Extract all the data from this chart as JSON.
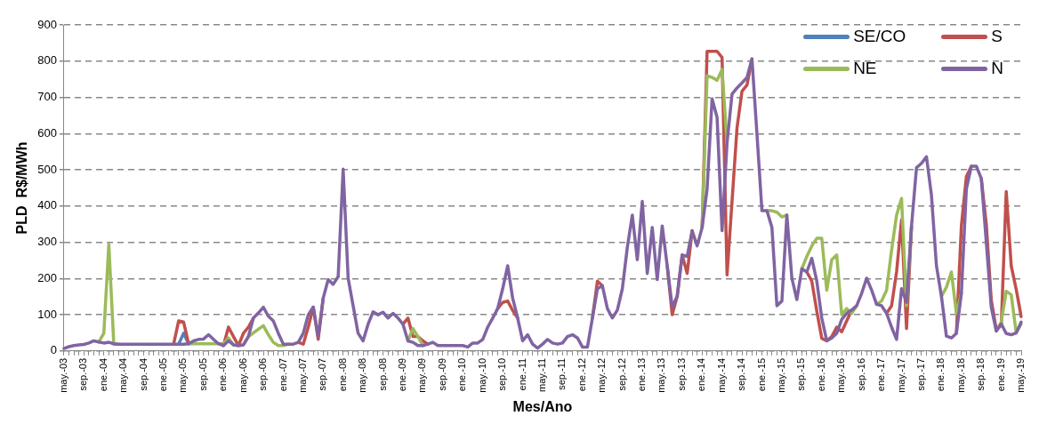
{
  "chart_data": {
    "type": "line",
    "xlabel": "Mes/Ano",
    "ylabel": "PLD  R$/MWh",
    "categories": [
      "may.-03",
      null,
      null,
      null,
      "sep.-03",
      null,
      null,
      null,
      "ene.-04",
      null,
      null,
      null,
      "may.-04",
      null,
      null,
      null,
      "sep.-04",
      null,
      null,
      null,
      "ene.-05",
      null,
      null,
      null,
      "may.-05",
      null,
      null,
      null,
      "sep.-05",
      null,
      null,
      null,
      "ene.-06",
      null,
      null,
      null,
      "may.-06",
      null,
      null,
      null,
      "sep.-06",
      null,
      null,
      null,
      "ene.-07",
      null,
      null,
      null,
      "may.-07",
      null,
      null,
      null,
      "sep.-07",
      null,
      null,
      null,
      "ene.-08",
      null,
      null,
      null,
      "may.-08",
      null,
      null,
      null,
      "sep.-08",
      null,
      null,
      null,
      "ene.-09",
      null,
      null,
      null,
      "may.-09",
      null,
      null,
      null,
      "sep.-09",
      null,
      null,
      null,
      "ene.-10",
      null,
      null,
      null,
      "may.-10",
      null,
      null,
      null,
      "sep.-10",
      null,
      null,
      null,
      "ene.-11",
      null,
      null,
      null,
      "may.-11",
      null,
      null,
      null,
      "sep.-11",
      null,
      null,
      null,
      "ene.-12",
      null,
      null,
      null,
      "may.-12",
      null,
      null,
      null,
      "sep.-12",
      null,
      null,
      null,
      "ene.-13",
      null,
      null,
      null,
      "may.-13",
      null,
      null,
      null,
      "sep.-13",
      null,
      null,
      null,
      "ene.-14",
      null,
      null,
      null,
      "may.-14",
      null,
      null,
      null,
      "sep.-14",
      null,
      null,
      null,
      "ene.-15",
      null,
      null,
      null,
      "may.-15",
      null,
      null,
      null,
      "sep.-15",
      null,
      null,
      null,
      "ene.-16",
      null,
      null,
      null,
      "may.-16",
      null,
      null,
      null,
      "sep.-16",
      null,
      null,
      null,
      "ene.-17",
      null,
      null,
      null,
      "may.-17",
      null,
      null,
      null,
      "sep.-17",
      null,
      null,
      null,
      "ene.-18",
      null,
      null,
      null,
      "may.-18",
      null,
      null,
      null,
      "sep.-18",
      null,
      null,
      null,
      "ene.-19",
      null,
      null,
      null,
      "may.-19"
    ],
    "series": [
      {
        "name": "SE/CO",
        "color": "#4f81bd",
        "values": [
          null,
          null,
          null,
          null,
          null,
          null,
          null,
          null,
          null,
          null,
          null,
          null,
          null,
          null,
          null,
          null,
          null,
          null,
          null,
          null,
          null,
          null,
          null,
          19,
          49,
          20,
          null,
          null,
          null,
          null,
          null,
          null,
          null,
          null,
          null,
          null,
          null,
          null,
          null,
          null,
          null,
          null,
          null,
          null,
          null,
          null,
          null,
          null,
          null,
          null,
          null,
          null,
          null,
          null,
          null,
          null,
          null,
          null,
          null,
          null,
          null,
          null,
          null,
          null,
          null,
          null,
          null,
          null,
          null,
          null,
          null,
          null,
          null,
          null,
          null,
          null,
          null,
          null,
          null,
          null,
          null,
          null,
          null,
          null,
          null,
          null,
          null,
          null,
          null,
          null,
          null,
          null,
          null,
          null,
          null,
          null,
          null,
          null,
          null,
          null,
          null,
          null,
          null,
          null,
          null,
          null,
          null,
          null,
          null,
          null,
          null,
          null,
          null,
          null,
          null,
          null,
          null,
          null,
          null,
          null,
          null,
          null,
          null,
          null,
          null,
          null,
          null,
          null,
          null,
          null,
          null,
          null,
          null,
          null,
          null,
          null,
          null,
          null,
          null,
          null,
          null,
          null,
          null,
          null,
          null,
          null,
          null,
          null,
          null,
          null,
          null,
          null,
          null,
          null,
          null,
          null,
          null,
          null,
          null,
          null,
          null,
          null,
          null,
          null,
          null,
          null,
          null,
          null,
          null,
          null,
          null,
          null,
          null,
          null,
          null,
          null,
          null,
          null,
          null,
          null,
          null,
          null,
          null,
          null,
          null,
          null,
          null,
          null,
          null,
          null,
          null,
          null,
          null
        ]
      },
      {
        "name": "S",
        "color": "#c0504d",
        "values": [
          null,
          null,
          null,
          null,
          null,
          null,
          null,
          null,
          null,
          null,
          null,
          null,
          null,
          null,
          null,
          null,
          null,
          null,
          null,
          null,
          null,
          null,
          19,
          83,
          80,
          20,
          null,
          null,
          null,
          null,
          null,
          null,
          15,
          66,
          40,
          15,
          49,
          66,
          91,
          null,
          null,
          null,
          null,
          null,
          null,
          null,
          null,
          24,
          19,
          66,
          121,
          32,
          146,
          null,
          null,
          null,
          null,
          null,
          null,
          null,
          null,
          null,
          null,
          null,
          null,
          null,
          null,
          null,
          74,
          91,
          40,
          40,
          28,
          19,
          null,
          null,
          null,
          null,
          null,
          null,
          null,
          null,
          null,
          null,
          null,
          null,
          null,
          117,
          134,
          138,
          112,
          91,
          null,
          null,
          null,
          null,
          null,
          null,
          null,
          null,
          null,
          null,
          null,
          null,
          null,
          null,
          91,
          193,
          180,
          null,
          null,
          null,
          null,
          null,
          null,
          null,
          null,
          null,
          null,
          null,
          null,
          235,
          100,
          151,
          265,
          214,
          332,
          null,
          341,
          827,
          827,
          827,
          810,
          210,
          413,
          616,
          717,
          734,
          806,
          null,
          null,
          null,
          null,
          null,
          null,
          null,
          null,
          null,
          null,
          218,
          193,
          110,
          35,
          28,
          40,
          66,
          53,
          83,
          113,
          null,
          null,
          null,
          null,
          null,
          null,
          104,
          125,
          218,
          362,
          62,
          345,
          null,
          null,
          null,
          null,
          null,
          null,
          null,
          null,
          49,
          345,
          481,
          510,
          null,
          476,
          350,
          140,
          60,
          70,
          440,
          235,
          170,
          95
        ]
      },
      {
        "name": "NE",
        "color": "#9bbb59",
        "values": [
          null,
          null,
          null,
          null,
          null,
          null,
          null,
          25,
          49,
          294,
          19,
          19,
          null,
          null,
          null,
          null,
          null,
          null,
          null,
          null,
          null,
          null,
          null,
          null,
          null,
          20,
          20,
          20,
          20,
          20,
          20,
          20,
          20,
          36,
          17,
          15,
          17,
          40,
          50,
          60,
          70,
          45,
          24,
          15,
          15,
          19,
          null,
          null,
          null,
          null,
          null,
          null,
          null,
          null,
          null,
          null,
          null,
          null,
          null,
          null,
          null,
          null,
          null,
          null,
          null,
          null,
          null,
          null,
          null,
          28,
          62,
          40,
          15,
          null,
          null,
          null,
          null,
          null,
          null,
          null,
          null,
          null,
          null,
          null,
          null,
          null,
          null,
          null,
          null,
          null,
          null,
          null,
          null,
          null,
          null,
          null,
          null,
          null,
          null,
          null,
          null,
          null,
          null,
          null,
          null,
          null,
          null,
          null,
          null,
          null,
          null,
          null,
          null,
          null,
          null,
          null,
          null,
          null,
          null,
          null,
          null,
          null,
          null,
          null,
          null,
          null,
          null,
          null,
          341,
          760,
          755,
          747,
          777,
          574,
          null,
          null,
          null,
          null,
          null,
          null,
          null,
          387,
          387,
          383,
          370,
          375,
          null,
          null,
          227,
          261,
          290,
          311,
          311,
          168,
          252,
          265,
          100,
          117,
          104,
          125,
          null,
          null,
          null,
          129,
          138,
          168,
          278,
          375,
          421,
          125,
          345,
          null,
          null,
          null,
          null,
          null,
          151,
          176,
          218,
          104,
          159,
          null,
          null,
          null,
          null,
          null,
          null,
          55,
          80,
          165,
          155,
          50,
          75
        ]
      },
      {
        "name": "N",
        "color": "#8064a2",
        "values": [
          7,
          12,
          15,
          17,
          18,
          22,
          28,
          25,
          22,
          24,
          20,
          19,
          19,
          19,
          19,
          19,
          19,
          19,
          19,
          19,
          19,
          19,
          19,
          19,
          19,
          20,
          28,
          32,
          33,
          45,
          32,
          20,
          15,
          28,
          17,
          15,
          17,
          40,
          91,
          105,
          121,
          96,
          83,
          49,
          19,
          19,
          19,
          24,
          49,
          100,
          121,
          40,
          146,
          197,
          184,
          205,
          502,
          201,
          125,
          49,
          28,
          74,
          108,
          100,
          107,
          91,
          104,
          91,
          74,
          28,
          24,
          15,
          15,
          19,
          24,
          15,
          15,
          15,
          15,
          15,
          15,
          11,
          22,
          22,
          32,
          66,
          91,
          117,
          172,
          235,
          146,
          91,
          28,
          45,
          19,
          8,
          19,
          32,
          22,
          19,
          22,
          40,
          45,
          36,
          11,
          11,
          91,
          172,
          180,
          117,
          91,
          113,
          172,
          286,
          375,
          252,
          413,
          214,
          341,
          197,
          345,
          235,
          121,
          151,
          265,
          261,
          332,
          290,
          341,
          447,
          696,
          645,
          332,
          574,
          709,
          726,
          740,
          755,
          806,
          599,
          387,
          387,
          341,
          125,
          138,
          375,
          201,
          142,
          227,
          218,
          256,
          193,
          91,
          28,
          36,
          49,
          87,
          104,
          113,
          125,
          159,
          201,
          168,
          129,
          125,
          104,
          66,
          32,
          172,
          134,
          345,
          506,
          518,
          536,
          430,
          235,
          151,
          41,
          36,
          49,
          159,
          447,
          510,
          510,
          476,
          300,
          120,
          55,
          75,
          48,
          45,
          50,
          80
        ]
      }
    ],
    "ylim": [
      0,
      900
    ],
    "yticks": [
      0,
      100,
      200,
      300,
      400,
      500,
      600,
      700,
      800,
      900
    ],
    "grid": "y",
    "legend": "top right",
    "marker": "none",
    "line_style": "solid"
  }
}
